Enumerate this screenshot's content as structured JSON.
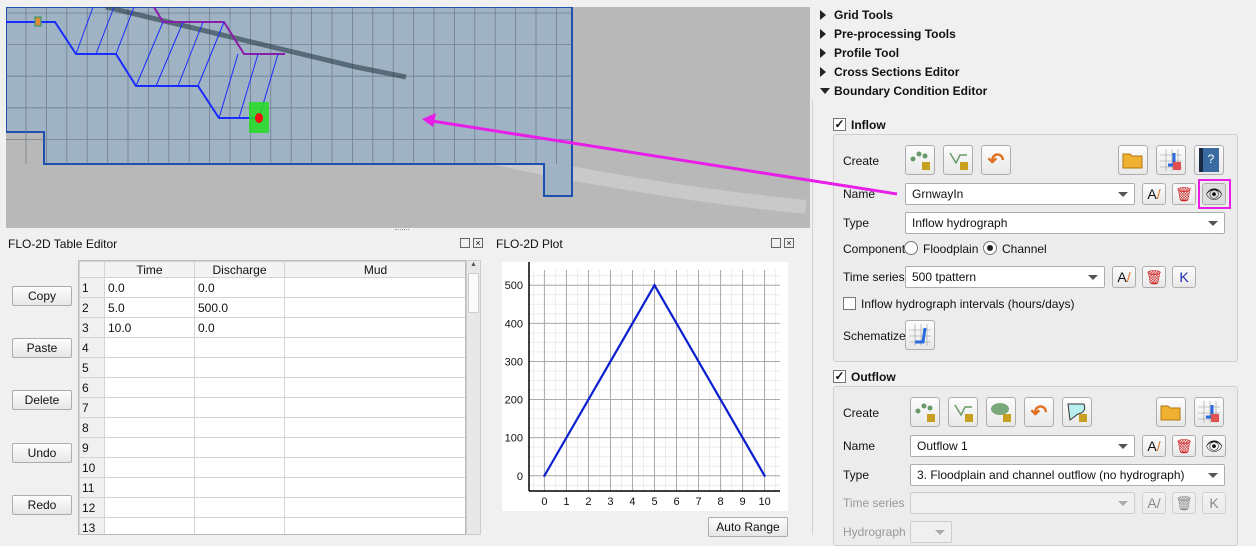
{
  "tree": {
    "items": [
      {
        "label": "Grid Tools",
        "expanded": false
      },
      {
        "label": "Pre-processing Tools",
        "expanded": false
      },
      {
        "label": "Profile Tool",
        "expanded": false
      },
      {
        "label": "Cross Sections Editor",
        "expanded": false
      },
      {
        "label": "Boundary Condition Editor",
        "expanded": true
      }
    ]
  },
  "inflow": {
    "title": "Inflow",
    "checked": true,
    "create_label": "Create",
    "name_label": "Name",
    "name_value": "GrnwayIn",
    "type_label": "Type",
    "type_value": "Inflow hydrograph",
    "component_label": "Component",
    "floodplain_label": "Floodplain",
    "channel_label": "Channel",
    "component_selected": "Channel",
    "timeseries_label": "Time series",
    "timeseries_value": "500 tpattern",
    "intervals_label": "Inflow hydrograph intervals (hours/days)",
    "intervals_checked": false,
    "schematize_label": "Schematize"
  },
  "outflow": {
    "title": "Outflow",
    "checked": true,
    "create_label": "Create",
    "name_label": "Name",
    "name_value": "Outflow 1",
    "type_label": "Type",
    "type_value": "3. Floodplain and channel outflow (no hydrograph)",
    "timeseries_label": "Time series",
    "timeseries_value": "",
    "hydrograph_label": "Hydrograph"
  },
  "table_editor": {
    "title": "FLO-2D Table Editor",
    "buttons": [
      "Copy",
      "Paste",
      "Delete",
      "Undo",
      "Redo"
    ],
    "columns": [
      "Time",
      "Discharge",
      "Mud"
    ],
    "rows": [
      [
        "1",
        "0.0",
        "0.0",
        ""
      ],
      [
        "2",
        "5.0",
        "500.0",
        ""
      ],
      [
        "3",
        "10.0",
        "0.0",
        ""
      ],
      [
        "4",
        "",
        "",
        ""
      ],
      [
        "5",
        "",
        "",
        ""
      ],
      [
        "6",
        "",
        "",
        ""
      ],
      [
        "7",
        "",
        "",
        ""
      ],
      [
        "8",
        "",
        "",
        ""
      ],
      [
        "9",
        "",
        "",
        ""
      ],
      [
        "10",
        "",
        "",
        ""
      ],
      [
        "11",
        "",
        "",
        ""
      ],
      [
        "12",
        "",
        "",
        ""
      ],
      [
        "13",
        "",
        "",
        ""
      ]
    ]
  },
  "plot": {
    "title": "FLO-2D Plot",
    "auto_range_label": "Auto Range"
  },
  "chart_data": {
    "type": "line",
    "x": [
      0,
      5,
      10
    ],
    "series": [
      {
        "values": [
          0,
          500,
          0
        ],
        "color": "#0a1fd0"
      }
    ],
    "xlim": [
      -0.7,
      10.7
    ],
    "ylim": [
      -40,
      540
    ],
    "xticks": [
      "0",
      "1",
      "2",
      "3",
      "4",
      "5",
      "6",
      "7",
      "8",
      "9",
      "10"
    ],
    "yticks": [
      "0",
      "100",
      "200",
      "300",
      "400",
      "500"
    ],
    "grid": true,
    "title": "",
    "xlabel": "",
    "ylabel": ""
  },
  "colors": {
    "highlight": "#e81ee8",
    "channel": "#1a2cff",
    "bank": "#8a1ea8",
    "inflow_cell": "#22dd22",
    "inflow_node": "#ee1111"
  }
}
